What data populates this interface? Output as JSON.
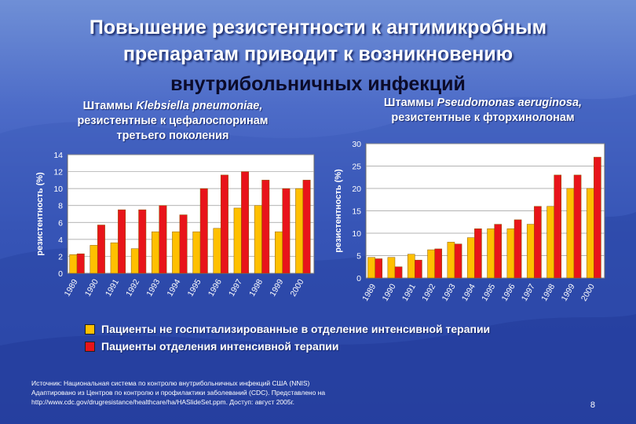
{
  "slide": {
    "title_line1": "Повышение резистентности к антимикробным",
    "title_line2": "препаратам приводит к возникновению",
    "title_line3": "внутрибольничных инфекций",
    "page_number": "8"
  },
  "left_panel": {
    "subtitle_prefix": "Штаммы ",
    "subtitle_organism": "Klebsiella pneumoniae,",
    "subtitle_line2": "резистентные к цефалоспоринам",
    "subtitle_line3": "третьего поколения"
  },
  "right_panel": {
    "subtitle_prefix": "Штаммы ",
    "subtitle_organism": "Pseudomonas aeruginosa,",
    "subtitle_line2": "резистентные к фторхинолонам"
  },
  "legend": {
    "items": [
      {
        "label": "Пациенты не госпитализированные в отделение интенсивной терапии",
        "color": "#ffc000"
      },
      {
        "label": "Пациенты отделения интенсивной терапии",
        "color": "#e8141a"
      }
    ]
  },
  "source": {
    "line1": "Источник: Национальная система по контролю внутрибольничных инфекций США (NNIS)",
    "line2": "Адаптировано из Центров по контролю и профилактики заболеваний (CDC). Представлено на",
    "line3": "http://www.cdc.gov/drugresistance/healthcare/ha/HASlideSet.ppm.  Доступ: август 2005г."
  },
  "colors": {
    "non_icu": "#ffc000",
    "icu": "#e8141a",
    "plot_bg": "#ffffff",
    "text": "#ffffff"
  },
  "chart_data": [
    {
      "type": "bar",
      "ylabel": "резистентность (%)",
      "ylim": [
        0,
        14
      ],
      "yticks": [
        0,
        2,
        4,
        6,
        8,
        10,
        12,
        14
      ],
      "grid": true,
      "categories": [
        "1989",
        "1990",
        "1991",
        "1992",
        "1993",
        "1994",
        "1995",
        "1996",
        "1997",
        "1998",
        "1999",
        "2000"
      ],
      "series": [
        {
          "name": "Пациенты не госпитализированные в отделение интенсивной терапии",
          "values": [
            2.2,
            3.3,
            3.6,
            2.9,
            4.9,
            4.9,
            4.9,
            5.3,
            7.7,
            8.0,
            4.9,
            10.0
          ]
        },
        {
          "name": "Пациенты отделения интенсивной терапии",
          "values": [
            2.3,
            5.7,
            7.5,
            7.5,
            8.0,
            6.9,
            10.0,
            11.6,
            12.0,
            11.0,
            10.0,
            11.0
          ]
        }
      ]
    },
    {
      "type": "bar",
      "ylabel": "резистентность (%)",
      "ylim": [
        0,
        30
      ],
      "yticks": [
        0,
        5,
        10,
        15,
        20,
        25,
        30
      ],
      "grid": true,
      "categories": [
        "1989",
        "1990",
        "1991",
        "1992",
        "1993",
        "1994",
        "1995",
        "1996",
        "1997",
        "1998",
        "1999",
        "2000"
      ],
      "series": [
        {
          "name": "Пациенты не госпитализированные в отделение интенсивной терапии",
          "values": [
            4.6,
            4.6,
            5.3,
            6.3,
            8.0,
            9.0,
            11.0,
            11.0,
            12.0,
            16.0,
            20.0,
            20.0
          ]
        },
        {
          "name": "Пациенты отделения интенсивной терапии",
          "values": [
            4.3,
            2.5,
            4.0,
            6.5,
            7.6,
            11.0,
            12.0,
            13.0,
            16.0,
            23.0,
            23.0,
            27.0
          ]
        }
      ]
    }
  ]
}
